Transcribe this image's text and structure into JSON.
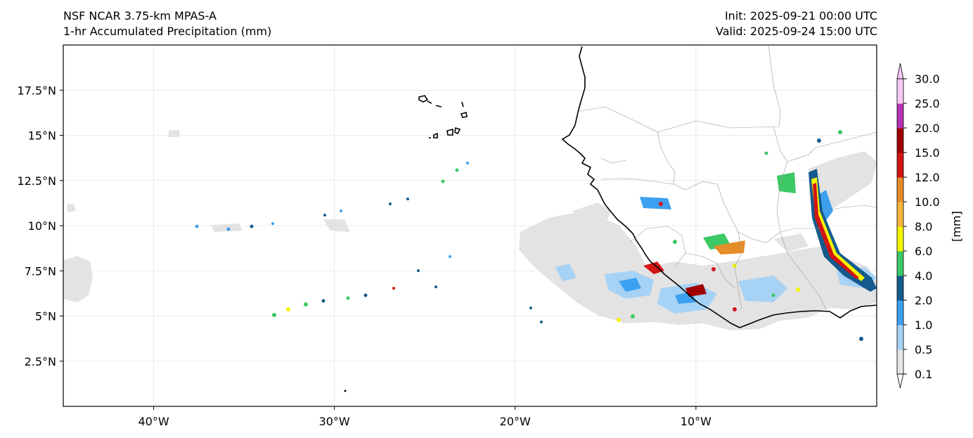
{
  "header": {
    "model": "NSF NCAR 3.75-km MPAS-A",
    "field": "1-hr Accumulated Precipitation (mm)",
    "init": "Init: 2025-09-21 00:00 UTC",
    "valid": "Valid: 2025-09-24 15:00 UTC"
  },
  "map": {
    "lon_range": [
      -45,
      0
    ],
    "lat_range": [
      0,
      20
    ],
    "gridlines": true,
    "lon_ticks": [
      {
        "value": -40,
        "label": "40°W"
      },
      {
        "value": -30,
        "label": "30°W"
      },
      {
        "value": -20,
        "label": "20°W"
      },
      {
        "value": -10,
        "label": "10°W"
      }
    ],
    "lat_ticks": [
      {
        "value": 2.5,
        "label": "2.5°N"
      },
      {
        "value": 5,
        "label": "5°N"
      },
      {
        "value": 7.5,
        "label": "7.5°N"
      },
      {
        "value": 10,
        "label": "10°N"
      },
      {
        "value": 12.5,
        "label": "12.5°N"
      },
      {
        "value": 15,
        "label": "15°N"
      },
      {
        "value": 17.5,
        "label": "17.5°N"
      }
    ]
  },
  "colorbar": {
    "unit_label": "[mm]",
    "levels": [
      {
        "value": 0.1,
        "label": "0.1",
        "color": "#e6e6e6"
      },
      {
        "value": 0.5,
        "label": "0.5",
        "color": "#a6d2f5"
      },
      {
        "value": 1.0,
        "label": "1.0",
        "color": "#3ca0f0"
      },
      {
        "value": 2.0,
        "label": "2.0",
        "color": "#145a8c"
      },
      {
        "value": 4.0,
        "label": "4.0",
        "color": "#3cc864"
      },
      {
        "value": 6.0,
        "label": "6.0",
        "color": "#f5f500"
      },
      {
        "value": 8.0,
        "label": "8.0",
        "color": "#f5b43c"
      },
      {
        "value": 10.0,
        "label": "10.0",
        "color": "#e68c28"
      },
      {
        "value": 12.0,
        "label": "12.0",
        "color": "#d21414"
      },
      {
        "value": 15.0,
        "label": "15.0",
        "color": "#a00000"
      },
      {
        "value": 20.0,
        "label": "20.0",
        "color": "#b432b4"
      },
      {
        "value": 25.0,
        "label": "25.0",
        "color": "#f5c8f5"
      },
      {
        "value": 30.0,
        "label": "30.0",
        "color": ""
      }
    ]
  }
}
